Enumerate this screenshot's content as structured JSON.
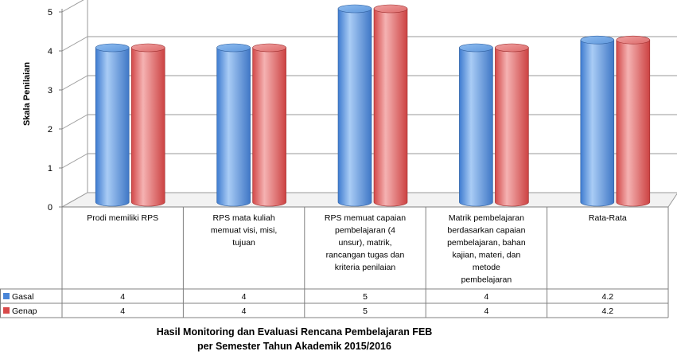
{
  "chart_data": {
    "type": "bar",
    "title": "Hasil Monitoring dan Evaluasi Rencana Pembelajaran FEB",
    "subtitle": "per Semester Tahun Akademik 2015/2016",
    "xlabel": "",
    "ylabel": "Skala Penilaian",
    "ylim": [
      0,
      5
    ],
    "yticks": [
      "0",
      "1",
      "2",
      "3",
      "4",
      "5"
    ],
    "categories": [
      [
        "Prodi memiliki RPS"
      ],
      [
        "RPS mata kuliah",
        "memuat visi, misi,",
        "tujuan"
      ],
      [
        "RPS memuat capaian",
        "pembelajaran (4",
        "unsur), matrik,",
        "rancangan tugas dan",
        "kriteria penilaian"
      ],
      [
        "Matrik pembelajaran",
        "berdasarkan capaian",
        "pembelajaran, bahan",
        "kajian, materi, dan",
        "metode",
        "pembelajaran"
      ],
      [
        "Rata-Rata"
      ]
    ],
    "series": [
      {
        "name": "Gasal",
        "values": [
          4,
          4,
          5,
          4,
          4.2
        ],
        "labels": [
          "4",
          "4",
          "5",
          "4",
          "4.2"
        ],
        "color": "#4a86d8"
      },
      {
        "name": "Genap",
        "values": [
          4,
          4,
          5,
          4,
          4.2
        ],
        "labels": [
          "4",
          "4",
          "5",
          "4",
          "4.2"
        ],
        "color": "#d84a4a"
      }
    ],
    "grid": true,
    "legend": "data-table-left"
  }
}
